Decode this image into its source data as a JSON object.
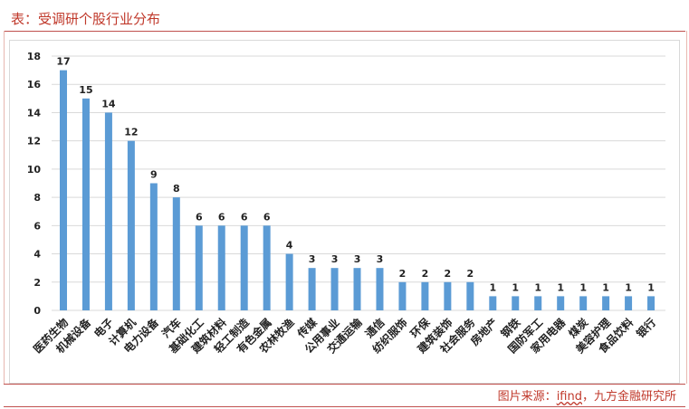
{
  "page": {
    "title": "表：受调研个股行业分布",
    "source_prefix": "图片来源：",
    "source_accent": "ifind",
    "source_suffix": "，九方金融研究所"
  },
  "chart_data": {
    "type": "bar",
    "categories": [
      "医药生物",
      "机械设备",
      "电子",
      "计算机",
      "电力设备",
      "汽车",
      "基础化工",
      "建筑材料",
      "轻工制造",
      "有色金属",
      "农林牧渔",
      "传媒",
      "公用事业",
      "交通运输",
      "通信",
      "纺织服饰",
      "环保",
      "建筑装饰",
      "社会服务",
      "房地产",
      "钢铁",
      "国防军工",
      "家用电器",
      "煤炭",
      "美容护理",
      "食品饮料",
      "银行"
    ],
    "values": [
      17,
      15,
      14,
      12,
      9,
      8,
      6,
      6,
      6,
      6,
      4,
      3,
      3,
      3,
      3,
      2,
      2,
      2,
      2,
      1,
      1,
      1,
      1,
      1,
      1,
      1,
      1
    ],
    "ylim": [
      0,
      18
    ],
    "yticks": [
      0,
      2,
      4,
      6,
      8,
      10,
      12,
      14,
      16,
      18
    ],
    "grid": true,
    "legend": "none",
    "colors": {
      "bar": "#5b9bd5",
      "grid": "#d9d9d9",
      "title": "#c0392b"
    }
  }
}
